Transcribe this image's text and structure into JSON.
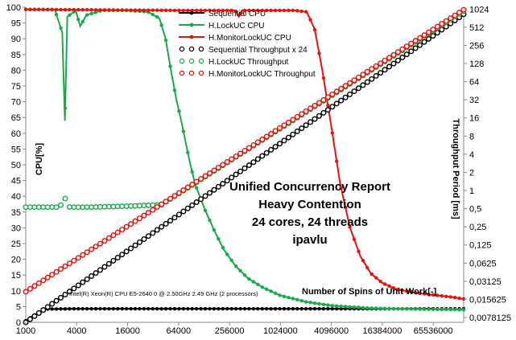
{
  "chart_data": {
    "type": "line",
    "title_lines": [
      "Unified Concurrency Report",
      "Heavy Contention",
      "24 cores, 24 threads",
      "ipavlu"
    ],
    "ylabel": "CPU[%]",
    "y2label": "Throughput Period [ms]",
    "xlabel": "Number of Spins of Unit Work[-]",
    "cpu_note": "Intel(R) Xeon(R) CPU E5-2640 0 @ 2.50GHz  2.49 GHz  (2 processors)",
    "x_scale": "log2",
    "x_ticks": [
      "1000",
      "4000",
      "16000",
      "64000",
      "256000",
      "1024000",
      "4096000",
      "16384000",
      "65536000"
    ],
    "ylim": [
      0,
      100
    ],
    "y_ticks": [
      "0",
      "5",
      "10",
      "15",
      "20",
      "25",
      "30",
      "35",
      "40",
      "45",
      "50",
      "55",
      "60",
      "65",
      "70",
      "75",
      "80",
      "85",
      "90",
      "95",
      "100"
    ],
    "y2_scale": "log2",
    "y2_ticks": [
      "0,0078125",
      "0,015625",
      "0,03125",
      "0,0625",
      "0,125",
      "0,25",
      "0,5",
      "1",
      "2",
      "4",
      "8",
      "16",
      "32",
      "64",
      "128",
      "256",
      "512",
      "1024"
    ],
    "grid": false,
    "legend_position": "top-center",
    "series": [
      {
        "name": "Sequential CPU",
        "color": "#000000",
        "style": "solid",
        "axis": "left",
        "points": [
          [
            1000,
            0.5
          ],
          [
            1300,
            2.5
          ],
          [
            1700,
            4.2
          ],
          [
            4000,
            4.3
          ],
          [
            65536000,
            4.3
          ]
        ]
      },
      {
        "name": "H.LockUC CPU",
        "color": "#1aaa4a",
        "style": "solid",
        "axis": "left",
        "points": [
          [
            1000,
            99.3
          ],
          [
            2200,
            99.3
          ],
          [
            2700,
            92
          ],
          [
            2900,
            64
          ],
          [
            3100,
            97
          ],
          [
            3900,
            99
          ],
          [
            4400,
            94
          ],
          [
            5200,
            97.5
          ],
          [
            8000,
            99
          ],
          [
            16000,
            99
          ],
          [
            28000,
            98.5
          ],
          [
            38000,
            96.5
          ],
          [
            45000,
            90
          ],
          [
            52000,
            80
          ],
          [
            60000,
            71
          ],
          [
            70000,
            63
          ],
          [
            85000,
            52
          ],
          [
            100000,
            44
          ],
          [
            130000,
            36
          ],
          [
            170000,
            29
          ],
          [
            220000,
            23
          ],
          [
            300000,
            18
          ],
          [
            420000,
            14
          ],
          [
            640000,
            11
          ],
          [
            1024000,
            8.5
          ],
          [
            2048000,
            6.5
          ],
          [
            4096000,
            5.3
          ],
          [
            10000000,
            4.6
          ],
          [
            16384000,
            4.4
          ],
          [
            65536000,
            4.1
          ],
          [
            150000000,
            4.0
          ]
        ]
      },
      {
        "name": "H.MonitorLockUC CPU",
        "color": "#e8120c",
        "style": "solid",
        "axis": "left",
        "points": [
          [
            1000,
            99.3
          ],
          [
            64000,
            99
          ],
          [
            300000,
            99
          ],
          [
            330000,
            97
          ],
          [
            360000,
            99
          ],
          [
            1500000,
            99
          ],
          [
            2100000,
            98.5
          ],
          [
            2600000,
            93
          ],
          [
            3200000,
            80
          ],
          [
            4096000,
            62
          ],
          [
            5200000,
            44
          ],
          [
            6800000,
            30
          ],
          [
            9000000,
            21
          ],
          [
            12000000,
            15.5
          ],
          [
            16384000,
            12.5
          ],
          [
            24000000,
            10.5
          ],
          [
            40000000,
            9.4
          ],
          [
            65536000,
            8.7
          ],
          [
            110000000,
            8.0
          ],
          [
            150000000,
            7.4
          ]
        ]
      },
      {
        "name": "Sequential Throughput x 24",
        "color": "#000000",
        "style": "dotted",
        "axis": "right",
        "points": [
          [
            1000,
            0.0065
          ],
          [
            150000000,
            840
          ]
        ]
      },
      {
        "name": "H.LockUC Throughput",
        "color": "#1aaa4a",
        "style": "dotted",
        "axis": "right",
        "points": [
          [
            1000,
            0.53
          ],
          [
            2500,
            0.53
          ],
          [
            2950,
            0.75
          ],
          [
            3300,
            0.53
          ],
          [
            6000,
            0.53
          ],
          [
            16000,
            0.55
          ],
          [
            40000,
            0.58
          ],
          [
            150000000,
            950
          ]
        ]
      },
      {
        "name": "H.MonitorLockUC Throughput",
        "color": "#e8120c",
        "style": "dotted",
        "axis": "right",
        "points": [
          [
            1000,
            0.021
          ],
          [
            150000000,
            1000
          ]
        ]
      }
    ]
  }
}
